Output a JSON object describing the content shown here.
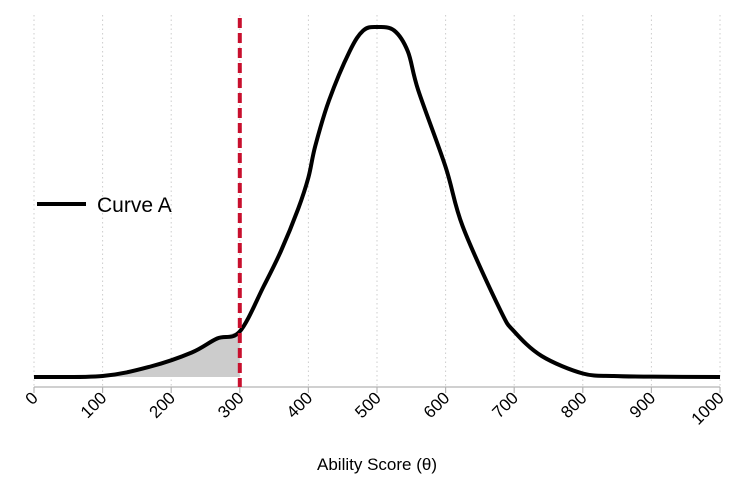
{
  "chart_data": {
    "type": "line",
    "title": "",
    "xlabel": "Ability Score (θ)",
    "ylabel": "",
    "xlim": [
      0,
      1000
    ],
    "x_ticks": [
      0,
      100,
      200,
      300,
      400,
      500,
      600,
      700,
      800,
      900,
      1000
    ],
    "x_tick_labels": [
      "0",
      "100",
      "200",
      "300",
      "400",
      "500",
      "600",
      "700",
      "800",
      "900",
      "1000"
    ],
    "y_ticks": [],
    "grid": {
      "vertical": true,
      "horizontal": false,
      "style": "dotted",
      "color": "#cccccc"
    },
    "legend": {
      "position": "left-middle",
      "entries": [
        "Curve A"
      ]
    },
    "series": [
      {
        "name": "Curve A",
        "color": "#000000",
        "note": "relative density (0 = baseline, 1 = peak)",
        "x": [
          0,
          100,
          170,
          230,
          267,
          300,
          335,
          360,
          385,
          400,
          410,
          430,
          460,
          480,
          500,
          525,
          545,
          560,
          600,
          625,
          680,
          700,
          740,
          800,
          845,
          900,
          1000
        ],
        "y": [
          0.0,
          0.003,
          0.03,
          0.07,
          0.11,
          0.13,
          0.26,
          0.36,
          0.48,
          0.57,
          0.66,
          0.79,
          0.93,
          0.99,
          1.0,
          0.99,
          0.93,
          0.82,
          0.6,
          0.43,
          0.19,
          0.13,
          0.06,
          0.01,
          0.003,
          0.001,
          0.0
        ]
      }
    ],
    "annotations": [
      {
        "type": "vline",
        "x": 300,
        "color": "#c8102e",
        "style": "dashed"
      },
      {
        "type": "shaded_area",
        "x_from": 0,
        "x_to": 300,
        "under": "Curve A",
        "color": "#cccccc"
      }
    ]
  }
}
